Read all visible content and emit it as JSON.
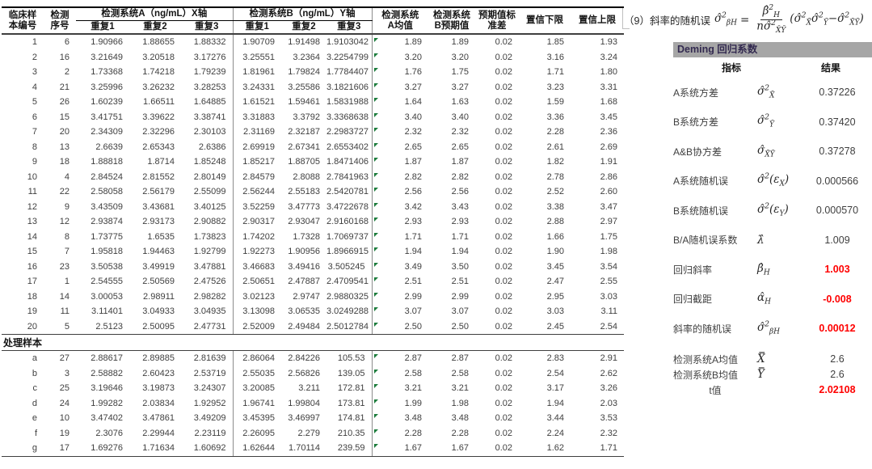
{
  "table": {
    "headers": {
      "c1a": "临床样",
      "c1b": "本编号",
      "c2a": "检测",
      "c2b": "序号",
      "groupA": "检测系统A（ng/mL）X轴",
      "groupB": "检测系统B（ng/mL）Y轴",
      "rep1": "重复1",
      "rep2": "重复2",
      "rep3": "重复3",
      "c9a": "检测系统",
      "c9b": "A均值",
      "c10a": "检测系统",
      "c10b": "B预期值",
      "c11a": "预期值标",
      "c11b": "准差",
      "c12": "置信下限",
      "c13": "置信上限"
    },
    "rows": [
      [
        "1",
        "6",
        "1.90966",
        "1.88655",
        "1.88332",
        "1.90709",
        "1.91498",
        "1.9103042",
        "1.89",
        "1.89",
        "0.02",
        "1.85",
        "1.93"
      ],
      [
        "2",
        "16",
        "3.21649",
        "3.20518",
        "3.17276",
        "3.25551",
        "3.2364",
        "3.2254799",
        "3.20",
        "3.20",
        "0.02",
        "3.16",
        "3.24"
      ],
      [
        "3",
        "2",
        "1.73368",
        "1.74218",
        "1.79239",
        "1.81961",
        "1.79824",
        "1.7784407",
        "1.76",
        "1.75",
        "0.02",
        "1.71",
        "1.80"
      ],
      [
        "4",
        "21",
        "3.25996",
        "3.26232",
        "3.28253",
        "3.24331",
        "3.25586",
        "3.1821606",
        "3.27",
        "3.27",
        "0.02",
        "3.23",
        "3.31"
      ],
      [
        "5",
        "26",
        "1.60239",
        "1.66511",
        "1.64885",
        "1.61521",
        "1.59461",
        "1.5831988",
        "1.64",
        "1.63",
        "0.02",
        "1.59",
        "1.68"
      ],
      [
        "6",
        "15",
        "3.41751",
        "3.39622",
        "3.38741",
        "3.31883",
        "3.3792",
        "3.3368638",
        "3.40",
        "3.40",
        "0.02",
        "3.36",
        "3.45"
      ],
      [
        "7",
        "20",
        "2.34309",
        "2.32296",
        "2.30103",
        "2.31169",
        "2.32187",
        "2.2983727",
        "2.32",
        "2.32",
        "0.02",
        "2.28",
        "2.36"
      ],
      [
        "8",
        "13",
        "2.6639",
        "2.65343",
        "2.6386",
        "2.69919",
        "2.67341",
        "2.6553402",
        "2.65",
        "2.65",
        "0.02",
        "2.61",
        "2.69"
      ],
      [
        "9",
        "18",
        "1.88818",
        "1.8714",
        "1.85248",
        "1.85217",
        "1.88705",
        "1.8471406",
        "1.87",
        "1.87",
        "0.02",
        "1.82",
        "1.91"
      ],
      [
        "10",
        "4",
        "2.84524",
        "2.81552",
        "2.80149",
        "2.84579",
        "2.8088",
        "2.7841963",
        "2.82",
        "2.82",
        "0.02",
        "2.78",
        "2.86"
      ],
      [
        "11",
        "22",
        "2.58058",
        "2.56179",
        "2.55099",
        "2.56244",
        "2.55183",
        "2.5420781",
        "2.56",
        "2.56",
        "0.02",
        "2.52",
        "2.60"
      ],
      [
        "12",
        "9",
        "3.43509",
        "3.43681",
        "3.40125",
        "3.52259",
        "3.47773",
        "3.4722678",
        "3.42",
        "3.43",
        "0.02",
        "3.38",
        "3.47"
      ],
      [
        "13",
        "12",
        "2.93874",
        "2.93173",
        "2.90882",
        "2.90317",
        "2.93047",
        "2.9160168",
        "2.93",
        "2.93",
        "0.02",
        "2.88",
        "2.97"
      ],
      [
        "14",
        "8",
        "1.73775",
        "1.6535",
        "1.73823",
        "1.74202",
        "1.7328",
        "1.7069737",
        "1.71",
        "1.71",
        "0.02",
        "1.66",
        "1.75"
      ],
      [
        "15",
        "7",
        "1.95818",
        "1.94463",
        "1.92799",
        "1.92273",
        "1.90956",
        "1.8966915",
        "1.94",
        "1.94",
        "0.02",
        "1.90",
        "1.98"
      ],
      [
        "16",
        "23",
        "3.50538",
        "3.49919",
        "3.47881",
        "3.46683",
        "3.49416",
        "3.505245",
        "3.49",
        "3.50",
        "0.02",
        "3.45",
        "3.54"
      ],
      [
        "17",
        "1",
        "2.54555",
        "2.50569",
        "2.47526",
        "2.50651",
        "2.47887",
        "2.4709541",
        "2.51",
        "2.51",
        "0.02",
        "2.47",
        "2.55"
      ],
      [
        "18",
        "14",
        "3.00053",
        "2.98911",
        "2.98282",
        "3.02123",
        "2.9747",
        "2.9880325",
        "2.99",
        "2.99",
        "0.02",
        "2.95",
        "3.03"
      ],
      [
        "19",
        "11",
        "3.11401",
        "3.04933",
        "3.04935",
        "3.13098",
        "3.06535",
        "3.0249288",
        "3.07",
        "3.07",
        "0.02",
        "3.03",
        "3.11"
      ],
      [
        "20",
        "5",
        "2.5123",
        "2.50095",
        "2.47731",
        "2.52009",
        "2.49484",
        "2.5012784",
        "2.50",
        "2.50",
        "0.02",
        "2.45",
        "2.54"
      ]
    ],
    "section_label": "处理样本",
    "rows2": [
      [
        "a",
        "27",
        "2.88617",
        "2.89885",
        "2.81639",
        "2.86064",
        "2.84226",
        "105.53",
        "2.87",
        "2.87",
        "0.02",
        "2.83",
        "2.91"
      ],
      [
        "b",
        "3",
        "2.58882",
        "2.60423",
        "2.53719",
        "2.55035",
        "2.56826",
        "139.05",
        "2.58",
        "2.58",
        "0.02",
        "2.54",
        "2.62"
      ],
      [
        "c",
        "25",
        "3.19646",
        "3.19873",
        "3.24307",
        "3.20085",
        "3.211",
        "172.81",
        "3.21",
        "3.21",
        "0.02",
        "3.17",
        "3.26"
      ],
      [
        "d",
        "24",
        "1.99282",
        "2.03834",
        "1.92952",
        "1.96741",
        "1.99804",
        "173.81",
        "1.99",
        "1.98",
        "0.02",
        "1.94",
        "2.03"
      ],
      [
        "e",
        "10",
        "3.47402",
        "3.47861",
        "3.49209",
        "3.45395",
        "3.46997",
        "174.81",
        "3.48",
        "3.48",
        "0.02",
        "3.44",
        "3.53"
      ],
      [
        "f",
        "19",
        "2.3076",
        "2.29944",
        "2.23119",
        "2.26095",
        "2.279",
        "210.35",
        "2.28",
        "2.28",
        "0.02",
        "2.24",
        "2.32"
      ],
      [
        "g",
        "17",
        "1.69276",
        "1.71634",
        "1.60692",
        "1.62644",
        "1.70114",
        "239.59",
        "1.67",
        "1.67",
        "0.02",
        "1.62",
        "1.71"
      ]
    ]
  },
  "panel": {
    "formula": {
      "label": "（9）斜率的随机误",
      "equals": "=",
      "lhs": [
        {
          "t": "σ̂"
        },
        {
          "t": "2",
          "p": "sup"
        },
        {
          "t": "βH",
          "p": "sub"
        }
      ],
      "numerator": [
        {
          "t": "β̂"
        },
        {
          "t": "2",
          "p": "sup"
        },
        {
          "t": "H",
          "p": "sub"
        }
      ],
      "denominator": [
        {
          "t": "nσ̂"
        },
        {
          "t": "2",
          "p": "sup"
        },
        {
          "t": "X̄Ȳ",
          "p": "sub"
        }
      ],
      "rhs": [
        {
          "t": "("
        },
        {
          "t": "σ̂"
        },
        {
          "t": "2",
          "p": "sup"
        },
        {
          "t": "X̄",
          "p": "sub"
        },
        {
          "t": "σ̂"
        },
        {
          "t": "2",
          "p": "sup"
        },
        {
          "t": "Ȳ",
          "p": "sub"
        },
        {
          "t": "−"
        },
        {
          "t": "σ̂"
        },
        {
          "t": "2",
          "p": "sup"
        },
        {
          "t": "X̄Ȳ",
          "p": "sub"
        },
        {
          "t": ")"
        }
      ]
    },
    "title": "Deming 回归系数",
    "col_indicator": "指标",
    "col_result": "结果",
    "rows": [
      {
        "label": "A系统方差",
        "sym": [
          {
            "t": "σ̂"
          },
          {
            "t": "2",
            "p": "sup"
          },
          {
            "t": "X̄",
            "p": "sub"
          }
        ],
        "value": "0.37226",
        "red": false
      },
      {
        "label": "B系统方差",
        "sym": [
          {
            "t": "σ̂"
          },
          {
            "t": "2",
            "p": "sup"
          },
          {
            "t": "Ȳ",
            "p": "sub"
          }
        ],
        "value": "0.37420",
        "red": false
      },
      {
        "label": "A&B协方差",
        "sym": [
          {
            "t": "σ̂"
          },
          {
            "t": "X̄Ȳ",
            "p": "sub"
          }
        ],
        "value": "0.37278",
        "red": false
      },
      {
        "label": "A系统随机误",
        "sym": [
          {
            "t": "σ̂"
          },
          {
            "t": "2",
            "p": "sup"
          },
          {
            "t": "("
          },
          {
            "t": "ε"
          },
          {
            "t": "X",
            "p": "sub"
          },
          {
            "t": ")"
          }
        ],
        "value": "0.000566",
        "red": false
      },
      {
        "label": "B系统随机误",
        "sym": [
          {
            "t": "σ̂"
          },
          {
            "t": "2",
            "p": "sup"
          },
          {
            "t": "("
          },
          {
            "t": "ε"
          },
          {
            "t": "Y",
            "p": "sub"
          },
          {
            "t": ")"
          }
        ],
        "value": "0.000570",
        "red": false
      },
      {
        "label": "B/A随机误系数",
        "sym": [
          {
            "t": "λ̂"
          }
        ],
        "value": "1.009",
        "red": false
      },
      {
        "label": "回归斜率",
        "sym": [
          {
            "t": "β̂"
          },
          {
            "t": "H",
            "p": "sub"
          }
        ],
        "value": "1.003",
        "red": true
      },
      {
        "label": "回归截距",
        "sym": [
          {
            "t": "α̂"
          },
          {
            "t": "H",
            "p": "sub"
          }
        ],
        "value": "-0.008",
        "red": true
      },
      {
        "label": "斜率的随机误",
        "sym": [
          {
            "t": "σ̂"
          },
          {
            "t": "2",
            "p": "sup"
          },
          {
            "t": "βH",
            "p": "sub"
          }
        ],
        "value": "0.00012",
        "red": true
      },
      {
        "label": "检测系统A均值",
        "sym": [
          {
            "t": "X̿"
          }
        ],
        "value": "2.6",
        "red": false
      },
      {
        "label": "检测系统B均值",
        "sym": [
          {
            "t": "Y̿"
          }
        ],
        "value": "2.6",
        "red": false
      },
      {
        "label": "t值",
        "sym": [],
        "value": "2.02108",
        "red": true
      }
    ]
  },
  "colors": {
    "accent_red": "#ff0000",
    "cell_flag_green": "#1c7c3c",
    "panel_title_bar": "#a6a6a6"
  }
}
